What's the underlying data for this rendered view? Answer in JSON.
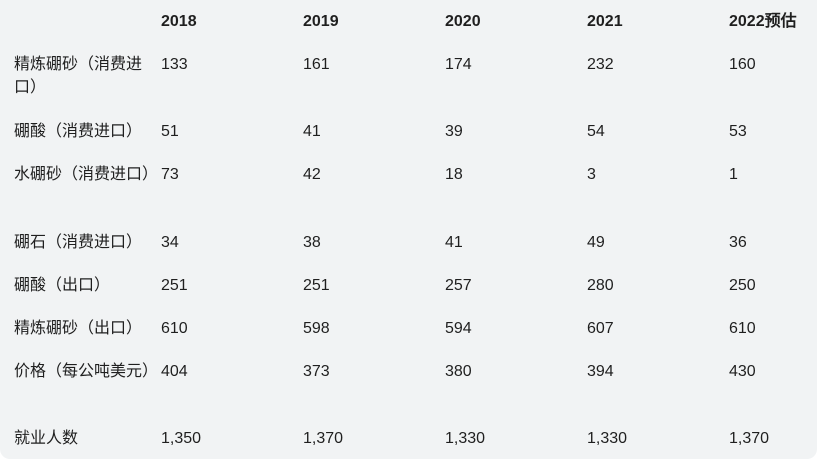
{
  "table": {
    "headers": [
      "",
      "2018",
      "2019",
      "2020",
      "2021",
      "2022预估"
    ],
    "rows": [
      {
        "label": "精炼硼砂（消费进口）",
        "values": [
          "133",
          "161",
          "174",
          "232",
          "160"
        ]
      },
      {
        "label": "硼酸（消费进口）",
        "values": [
          "51",
          "41",
          "39",
          "54",
          "53"
        ]
      },
      {
        "label": "水硼砂（消费进口）",
        "values": [
          "73",
          "42",
          "18",
          "3",
          "1"
        ]
      },
      {
        "label": "硼石（消费进口）",
        "values": [
          "34",
          "38",
          "41",
          "49",
          "36"
        ]
      },
      {
        "label": "硼酸（出口）",
        "values": [
          "251",
          "251",
          "257",
          "280",
          "250"
        ]
      },
      {
        "label": "精炼硼砂（出口）",
        "values": [
          "610",
          "598",
          "594",
          "607",
          "610"
        ]
      },
      {
        "label": "价格（每公吨美元）",
        "values": [
          "404",
          "373",
          "380",
          "394",
          "430"
        ]
      },
      {
        "label": "就业人数",
        "values": [
          "1,350",
          "1,370",
          "1,330",
          "1,330",
          "1,370"
        ]
      }
    ]
  }
}
